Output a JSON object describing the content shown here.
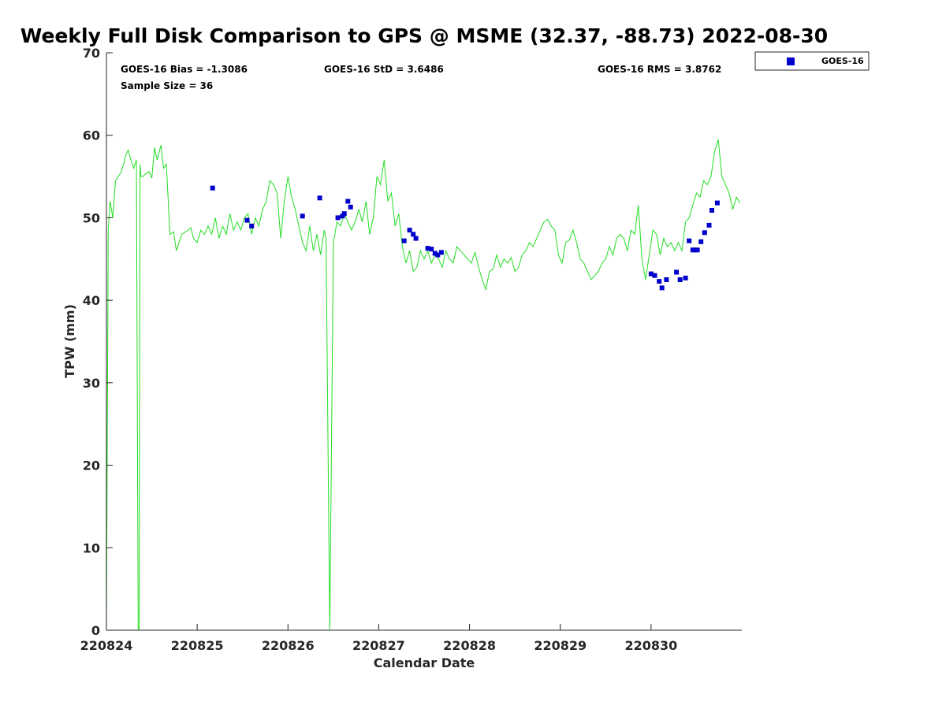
{
  "chart_data": {
    "type": "scatter",
    "title": "Weekly Full Disk Comparison to GPS @ MSME (32.37, -88.73) 2022-08-30",
    "xlabel": "Calendar Date",
    "ylabel": "TPW (mm)",
    "xlim": [
      0,
      7
    ],
    "ylim": [
      0,
      70
    ],
    "x_ticks": [
      {
        "value": 0,
        "label": "220824"
      },
      {
        "value": 1,
        "label": "220825"
      },
      {
        "value": 2,
        "label": "220826"
      },
      {
        "value": 3,
        "label": "220827"
      },
      {
        "value": 4,
        "label": "220828"
      },
      {
        "value": 5,
        "label": "220829"
      },
      {
        "value": 6,
        "label": "220830"
      }
    ],
    "y_ticks": [
      0,
      10,
      20,
      30,
      40,
      50,
      60,
      70
    ],
    "stats": {
      "bias": "GOES-16 Bias = -1.3086",
      "std": "GOES-16 StD = 3.6486",
      "rms": "GOES-16 RMS = 3.8762",
      "sample": "Sample Size = 36"
    },
    "legend": {
      "position": "top-right-outside",
      "entries": [
        {
          "name": "GOES-16",
          "color": "#0000cc"
        }
      ]
    },
    "gps_line": {
      "color": "#22dd22",
      "x": [
        0.0,
        0.02,
        0.04,
        0.07,
        0.1,
        0.13,
        0.16,
        0.19,
        0.21,
        0.24,
        0.27,
        0.3,
        0.33,
        0.35,
        0.36,
        0.37,
        0.38,
        0.4,
        0.43,
        0.47,
        0.5,
        0.53,
        0.56,
        0.6,
        0.63,
        0.66,
        0.7,
        0.74,
        0.77,
        0.8,
        0.83,
        0.86,
        0.9,
        0.93,
        0.96,
        1.0,
        1.04,
        1.08,
        1.12,
        1.16,
        1.2,
        1.24,
        1.28,
        1.32,
        1.36,
        1.4,
        1.44,
        1.48,
        1.52,
        1.56,
        1.6,
        1.64,
        1.68,
        1.72,
        1.76,
        1.8,
        1.84,
        1.88,
        1.92,
        1.96,
        2.0,
        2.04,
        2.08,
        2.12,
        2.16,
        2.2,
        2.24,
        2.28,
        2.32,
        2.36,
        2.38,
        2.4,
        2.42,
        2.46,
        2.5,
        2.54,
        2.58,
        2.62,
        2.66,
        2.7,
        2.74,
        2.78,
        2.82,
        2.86,
        2.9,
        2.94,
        2.98,
        3.02,
        3.06,
        3.1,
        3.14,
        3.18,
        3.22,
        3.26,
        3.3,
        3.34,
        3.38,
        3.42,
        3.46,
        3.5,
        3.54,
        3.58,
        3.62,
        3.66,
        3.7,
        3.74,
        3.78,
        3.82,
        3.86,
        3.9,
        3.94,
        3.98,
        4.02,
        4.06,
        4.1,
        4.14,
        4.18,
        4.22,
        4.26,
        4.3,
        4.34,
        4.38,
        4.42,
        4.46,
        4.5,
        4.54,
        4.58,
        4.62,
        4.66,
        4.7,
        4.74,
        4.78,
        4.82,
        4.86,
        4.9,
        4.94,
        4.98,
        5.02,
        5.06,
        5.1,
        5.14,
        5.18,
        5.22,
        5.26,
        5.3,
        5.34,
        5.38,
        5.42,
        5.46,
        5.5,
        5.54,
        5.58,
        5.62,
        5.66,
        5.7,
        5.74,
        5.78,
        5.82,
        5.86,
        5.9,
        5.94,
        5.98,
        6.02,
        6.06,
        6.1,
        6.14,
        6.18,
        6.22,
        6.26,
        6.3,
        6.34,
        6.38,
        6.42,
        6.46,
        6.5,
        6.54,
        6.58,
        6.62,
        6.66,
        6.7,
        6.74,
        6.78,
        6.82,
        6.86,
        6.9,
        6.94,
        6.98
      ],
      "y": [
        0.0,
        48.5,
        52.0,
        50.0,
        54.5,
        55.0,
        55.5,
        56.5,
        57.5,
        58.2,
        57.0,
        56.0,
        57.0,
        0.0,
        0.0,
        56.5,
        55.0,
        55.0,
        55.3,
        55.6,
        54.8,
        58.5,
        57.0,
        58.8,
        56.0,
        56.5,
        48.0,
        48.3,
        46.0,
        47.0,
        48.0,
        48.2,
        48.5,
        48.8,
        47.5,
        47.0,
        48.5,
        48.0,
        49.0,
        48.0,
        50.0,
        47.5,
        49.0,
        48.0,
        50.5,
        48.5,
        49.5,
        48.5,
        50.0,
        50.5,
        48.0,
        50.0,
        49.0,
        51.0,
        52.0,
        54.5,
        54.0,
        53.0,
        47.5,
        52.0,
        55.0,
        52.5,
        51.0,
        49.0,
        47.0,
        46.0,
        49.0,
        46.0,
        48.0,
        45.5,
        47.0,
        48.5,
        47.5,
        0.0,
        47.0,
        49.5,
        49.0,
        50.5,
        49.5,
        48.5,
        49.5,
        51.0,
        49.5,
        52.0,
        48.0,
        50.0,
        55.0,
        54.0,
        57.0,
        52.0,
        53.0,
        49.0,
        50.5,
        46.5,
        44.5,
        46.0,
        43.5,
        44.0,
        46.0,
        45.0,
        46.0,
        44.5,
        45.5,
        45.0,
        44.0,
        46.0,
        45.0,
        44.5,
        46.5,
        46.0,
        45.5,
        45.0,
        44.5,
        45.8,
        44.0,
        42.5,
        41.3,
        43.5,
        43.8,
        45.5,
        44.0,
        45.0,
        44.5,
        45.2,
        43.5,
        44.0,
        45.5,
        46.0,
        47.0,
        46.5,
        47.5,
        48.5,
        49.5,
        49.8,
        49.0,
        48.5,
        45.5,
        44.5,
        47.0,
        47.3,
        48.5,
        47.0,
        45.0,
        44.5,
        43.5,
        42.5,
        43.0,
        43.5,
        44.5,
        45.0,
        46.5,
        45.5,
        47.5,
        48.0,
        47.5,
        46.0,
        48.5,
        48.0,
        51.5,
        45.0,
        42.5,
        45.5,
        48.5,
        48.0,
        45.5,
        47.5,
        46.5,
        47.0,
        46.0,
        47.0,
        46.0,
        49.5,
        50.0,
        51.5,
        53.0,
        52.5,
        54.5,
        54.0,
        55.0,
        58.0,
        59.5,
        55.0,
        54.0,
        53.0,
        51.0,
        52.5,
        51.8
      ]
    },
    "series": [
      {
        "name": "GOES-16",
        "color": "#0000cc",
        "x": [
          1.17,
          1.55,
          1.6,
          2.16,
          2.35,
          2.55,
          2.6,
          2.62,
          2.66,
          2.69,
          3.28,
          3.34,
          3.38,
          3.41,
          3.54,
          3.58,
          3.62,
          3.65,
          3.69,
          6.0,
          6.04,
          6.09,
          6.12,
          6.17,
          6.28,
          6.32,
          6.38,
          6.42,
          6.46,
          6.48,
          6.51,
          6.55,
          6.59,
          6.64,
          6.67,
          6.73
        ],
        "y": [
          53.6,
          49.7,
          49.0,
          50.2,
          52.4,
          50.0,
          50.2,
          50.5,
          52.0,
          51.3,
          47.2,
          48.5,
          48.0,
          47.5,
          46.3,
          46.2,
          45.7,
          45.5,
          45.8,
          43.2,
          43.0,
          42.3,
          41.5,
          42.5,
          43.4,
          42.5,
          42.7,
          47.2,
          46.1,
          46.1,
          46.1,
          47.1,
          48.2,
          49.1,
          50.9,
          51.8
        ]
      }
    ]
  }
}
